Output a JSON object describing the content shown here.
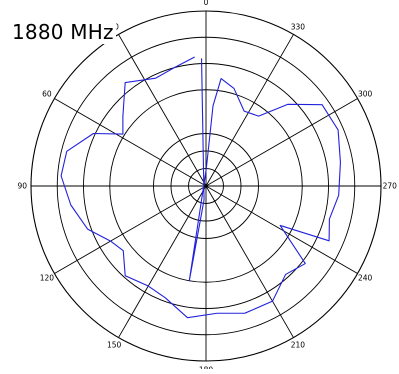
{
  "chart_data": {
    "type": "polar-line",
    "title": "1880 MHz",
    "angle_unit": "degrees",
    "angle_direction": "counterclockwise",
    "zero_at": "top",
    "angular_ticks": [
      "0",
      "30",
      "60",
      "90",
      "120",
      "150",
      "180",
      "210",
      "240",
      "270",
      "300",
      "330"
    ],
    "radial_range": [
      0,
      1
    ],
    "rings": [
      0.1,
      0.2,
      0.3,
      0.55,
      0.7,
      0.85,
      1.0
    ],
    "series": [
      {
        "color": "#2222dd",
        "points": [
          {
            "angle": 5,
            "r": 0.74
          },
          {
            "angle": 15,
            "r": 0.7
          },
          {
            "angle": 25,
            "r": 0.68
          },
          {
            "angle": 38,
            "r": 0.75
          },
          {
            "angle": 50,
            "r": 0.62
          },
          {
            "angle": 58,
            "r": 0.56
          },
          {
            "angle": 65,
            "r": 0.71
          },
          {
            "angle": 76,
            "r": 0.82
          },
          {
            "angle": 86,
            "r": 0.83
          },
          {
            "angle": 98,
            "r": 0.78
          },
          {
            "angle": 110,
            "r": 0.72
          },
          {
            "angle": 120,
            "r": 0.63
          },
          {
            "angle": 128,
            "r": 0.6
          },
          {
            "angle": 138,
            "r": 0.69
          },
          {
            "angle": 150,
            "r": 0.66
          },
          {
            "angle": 160,
            "r": 0.68
          },
          {
            "angle": 172,
            "r": 0.76
          },
          {
            "angle": 185,
            "r": 0.73
          },
          {
            "angle": 197,
            "r": 0.76
          },
          {
            "angle": 210,
            "r": 0.76
          },
          {
            "angle": 222,
            "r": 0.68
          },
          {
            "angle": 232,
            "r": 0.72
          },
          {
            "angle": 242,
            "r": 0.48
          },
          {
            "angle": 246,
            "r": 0.77
          },
          {
            "angle": 255,
            "r": 0.73
          },
          {
            "angle": 266,
            "r": 0.76
          },
          {
            "angle": 280,
            "r": 0.78
          },
          {
            "angle": 293,
            "r": 0.82
          },
          {
            "angle": 305,
            "r": 0.81
          },
          {
            "angle": 315,
            "r": 0.66
          },
          {
            "angle": 323,
            "r": 0.5
          },
          {
            "angle": 333,
            "r": 0.48
          },
          {
            "angle": 344,
            "r": 0.58
          },
          {
            "angle": 352,
            "r": 0.62
          },
          {
            "angle": 355,
            "r": 0.46
          },
          {
            "angle": 359,
            "r": 0.1
          },
          {
            "angle": 170,
            "r": 0.55
          },
          {
            "angle": 172,
            "r": 0.08
          },
          {
            "angle": 2,
            "r": 0.73
          }
        ]
      }
    ]
  }
}
